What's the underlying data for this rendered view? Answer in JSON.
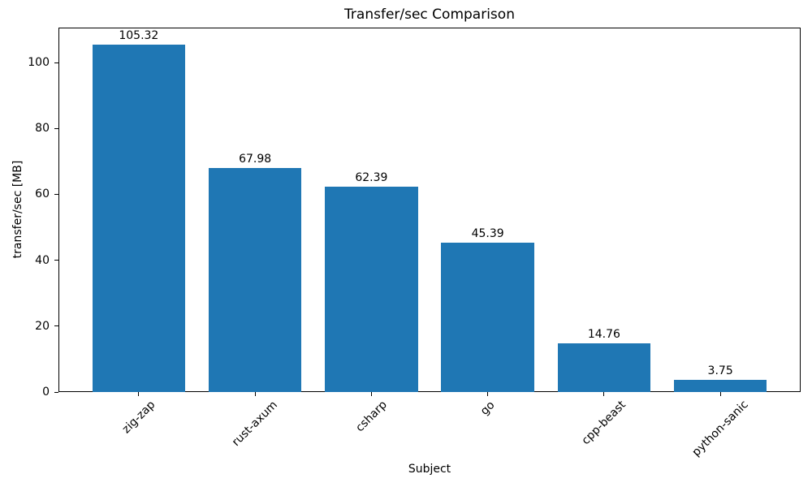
{
  "chart_data": {
    "type": "bar",
    "title": "Transfer/sec Comparison",
    "xlabel": "Subject",
    "ylabel": "transfer/sec [MB]",
    "categories": [
      "zig-zap",
      "rust-axum",
      "csharp",
      "go",
      "cpp-beast",
      "python-sanic"
    ],
    "values": [
      105.32,
      67.98,
      62.39,
      45.39,
      14.76,
      3.75
    ],
    "bar_labels": [
      "105.32",
      "67.98",
      "62.39",
      "45.39",
      "14.76",
      "3.75"
    ],
    "yticks": [
      0,
      20,
      40,
      60,
      80,
      100
    ],
    "ylim": [
      0,
      110.6
    ],
    "bar_color": "#1f77b4",
    "grid": false,
    "legend": null,
    "xtick_rotation_deg": 45
  }
}
